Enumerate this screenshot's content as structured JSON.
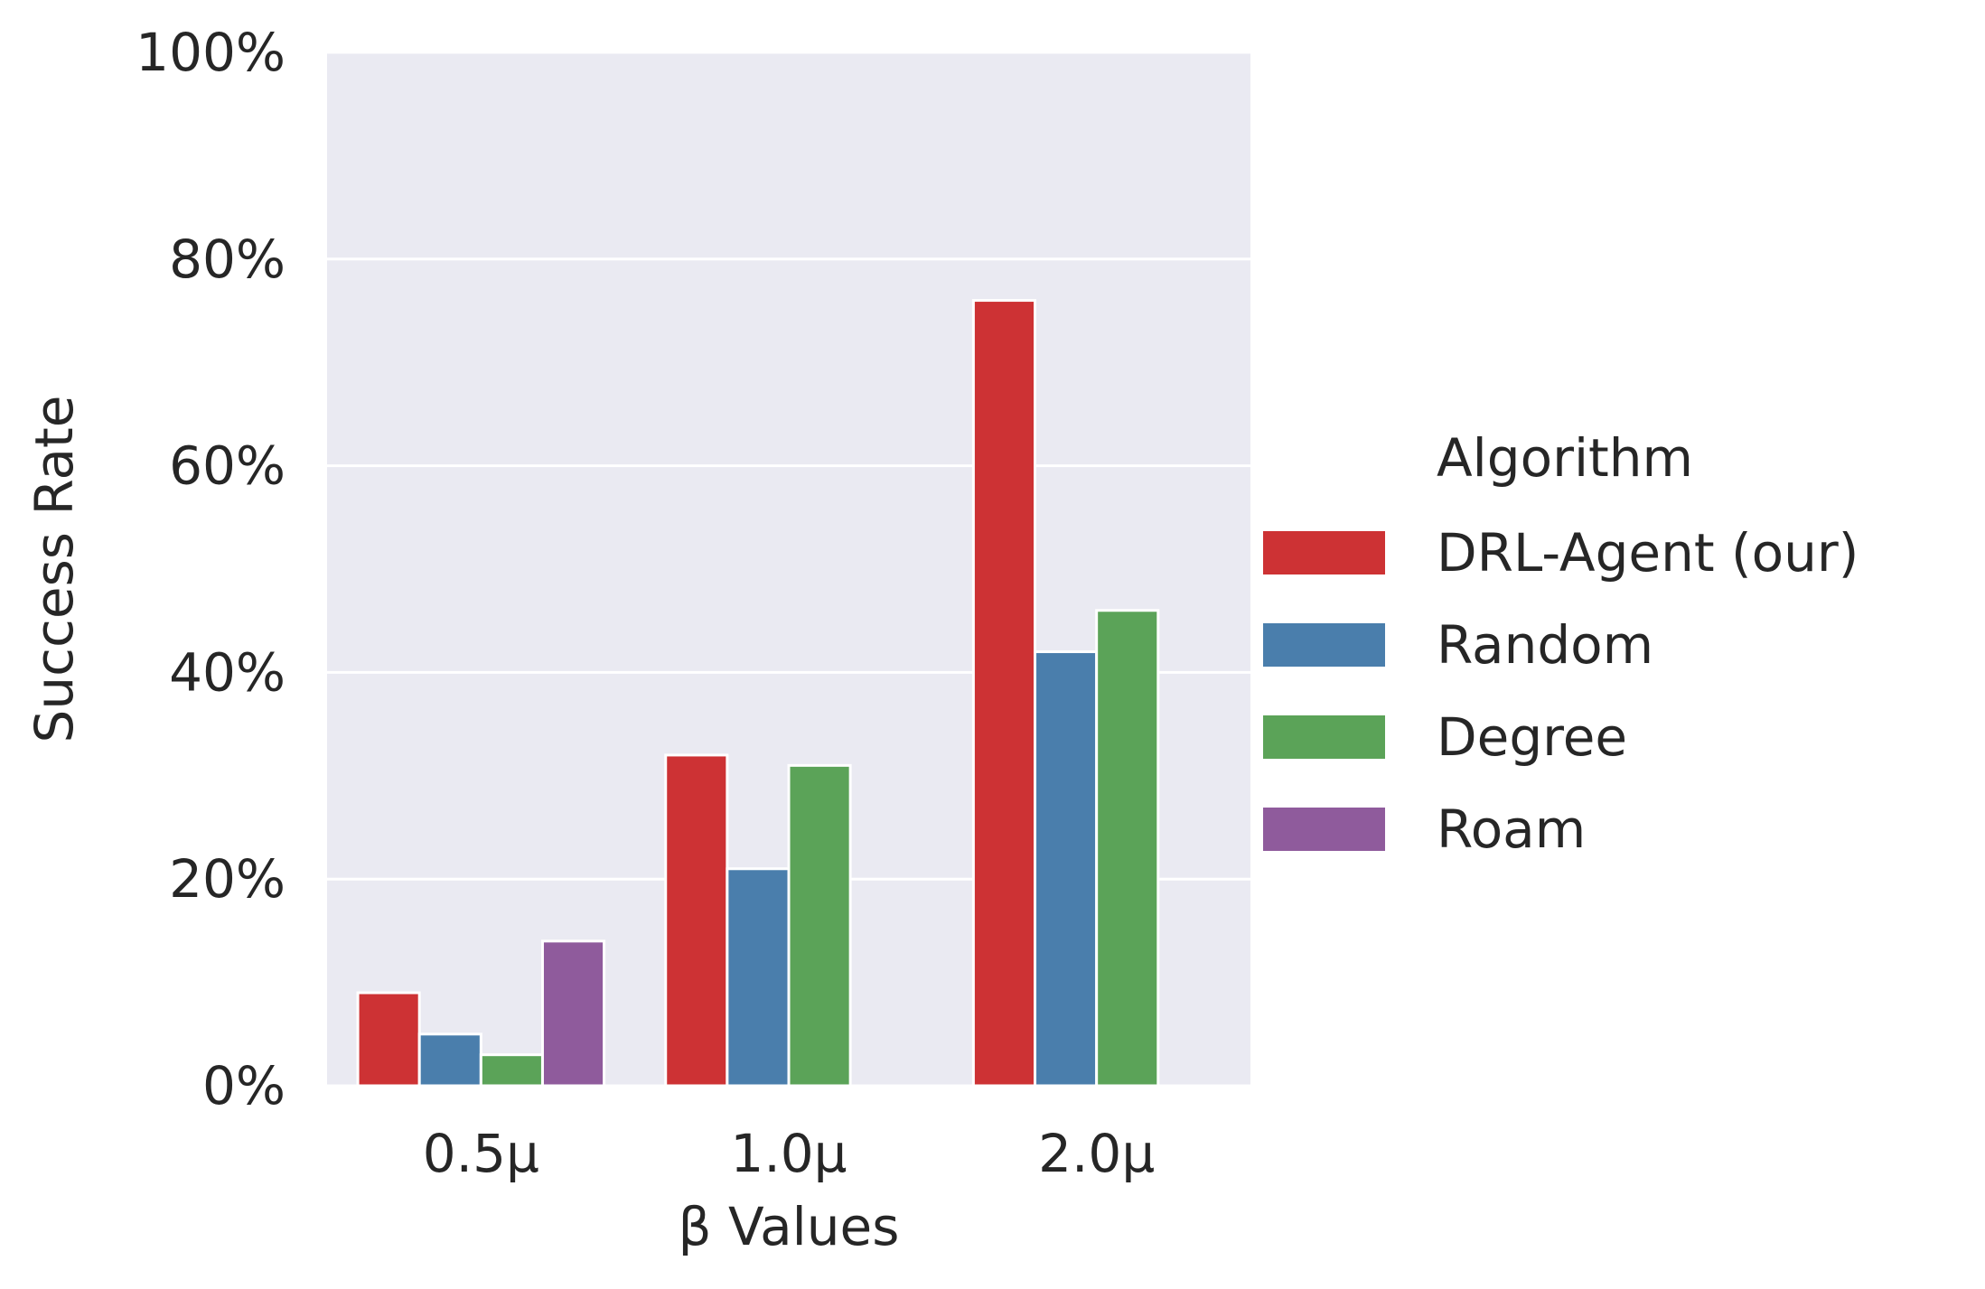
{
  "chart_data": {
    "type": "bar",
    "title": "",
    "xlabel": "β Values",
    "ylabel": "Success Rate",
    "categories": [
      "0.5μ",
      "1.0μ",
      "2.0μ"
    ],
    "ylim": [
      0,
      100
    ],
    "yticks": [
      0,
      20,
      40,
      60,
      80,
      100
    ],
    "ytick_labels": [
      "0%",
      "20%",
      "40%",
      "60%",
      "80%",
      "100%"
    ],
    "y_unit": "%",
    "grid": "horizontal",
    "legend_position": "right",
    "legend_title": "Algorithm",
    "series": [
      {
        "name": "DRL-Agent (our)",
        "color": "#cd3234",
        "values": [
          9,
          32,
          76
        ]
      },
      {
        "name": "Random",
        "color": "#4a7eac",
        "values": [
          5,
          21,
          42
        ]
      },
      {
        "name": "Degree",
        "color": "#5ba358",
        "values": [
          3,
          31,
          46
        ]
      },
      {
        "name": "Roam",
        "color": "#8f5b9c",
        "values": [
          14,
          null,
          null
        ]
      }
    ]
  },
  "colors": {
    "plot_background": "#eaeaf2",
    "grid": "#ffffff",
    "text": "#262626"
  }
}
